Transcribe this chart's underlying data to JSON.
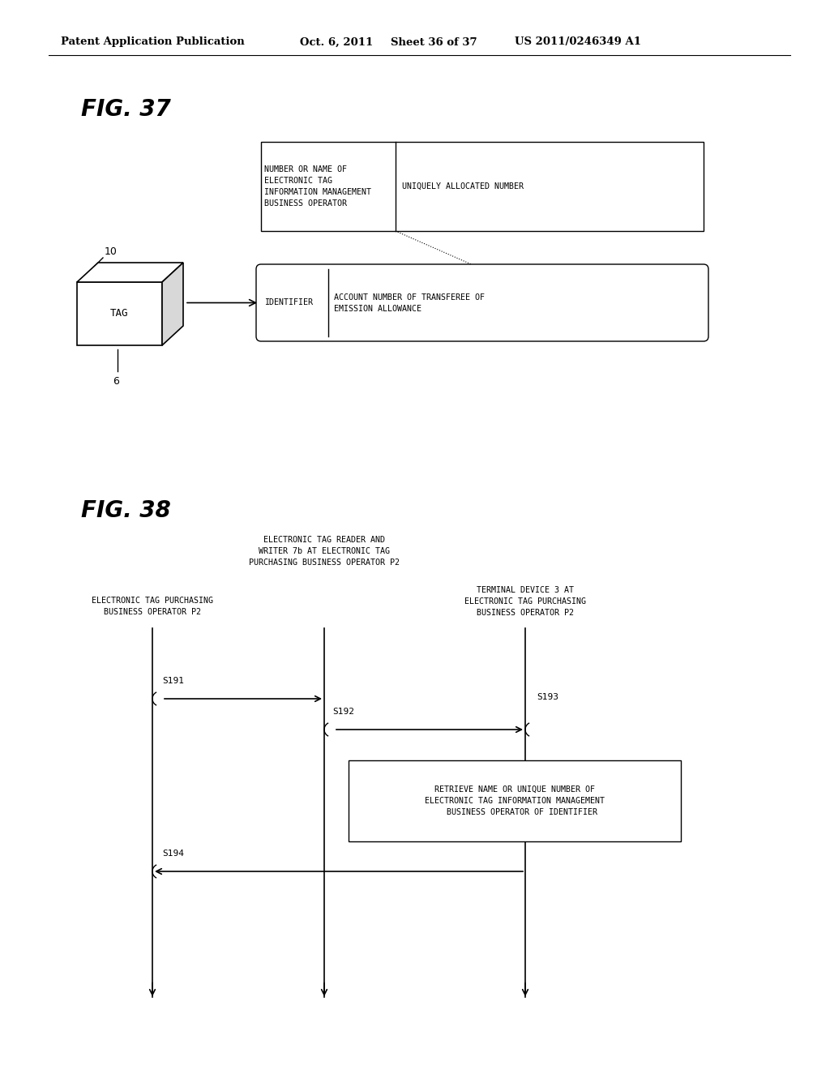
{
  "bg_color": "#ffffff",
  "header_text": "Patent Application Publication",
  "header_date": "Oct. 6, 2011",
  "header_sheet": "Sheet 36 of 37",
  "header_patent": "US 2011/0246349 A1",
  "fig37_label": "FIG. 37",
  "fig38_label": "FIG. 38",
  "tag_label": "TAG",
  "tag_number": "10",
  "tag_ref": "6",
  "upper_box_left_text": "NUMBER OR NAME OF\nELECTRONIC TAG\nINFORMATION MANAGEMENT\nBUSINESS OPERATOR",
  "upper_box_right_text": "UNIQUELY ALLOCATED NUMBER",
  "lower_box_left_text": "IDENTIFIER",
  "lower_box_right_text": "ACCOUNT NUMBER OF TRANSFEREE OF\nEMISSION ALLOWANCE",
  "seq_col1_label": "ELECTRONIC TAG PURCHASING\nBUSINESS OPERATOR P2",
  "seq_col2_label": "ELECTRONIC TAG READER AND\nWRITER 7b AT ELECTRONIC TAG\nPURCHASING BUSINESS OPERATOR P2",
  "seq_col3_label": "TERMINAL DEVICE 3 AT\nELECTRONIC TAG PURCHASING\nBUSINESS OPERATOR P2",
  "s191": "S191",
  "s192": "S192",
  "s193": "S193",
  "s194": "S194",
  "retrieve_box_text": "RETRIEVE NAME OR UNIQUE NUMBER OF\nELECTRONIC TAG INFORMATION MANAGEMENT\n   BUSINESS OPERATOR OF IDENTIFIER"
}
